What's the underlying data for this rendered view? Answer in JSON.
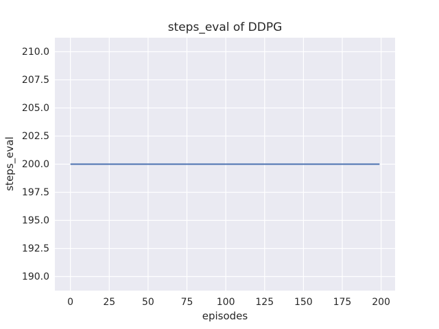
{
  "chart_data": {
    "type": "line",
    "title": "steps_eval of DDPG",
    "xlabel": "episodes",
    "ylabel": "steps_eval",
    "xlim": [
      -10,
      209
    ],
    "ylim": [
      188.75,
      211.25
    ],
    "xticks": [
      0,
      25,
      50,
      75,
      100,
      125,
      150,
      175,
      200
    ],
    "xtick_labels": [
      "0",
      "25",
      "50",
      "75",
      "100",
      "125",
      "150",
      "175",
      "200"
    ],
    "yticks": [
      190,
      192.5,
      195,
      197.5,
      200,
      202.5,
      205,
      207.5,
      210
    ],
    "ytick_labels": [
      "190.0",
      "192.5",
      "195.0",
      "197.5",
      "200.0",
      "202.5",
      "205.0",
      "207.5",
      "210.0"
    ],
    "grid": true,
    "legend": "none",
    "series": [
      {
        "name": "DDPG",
        "color": "#4c72b0",
        "points": [
          [
            0,
            200
          ],
          [
            199,
            200
          ]
        ]
      }
    ],
    "colors": {
      "figure_bg": "#ffffff",
      "plot_bg": "#eaeaf2",
      "grid": "#ffffff",
      "text": "#262626",
      "line": "#4c72b0"
    }
  }
}
